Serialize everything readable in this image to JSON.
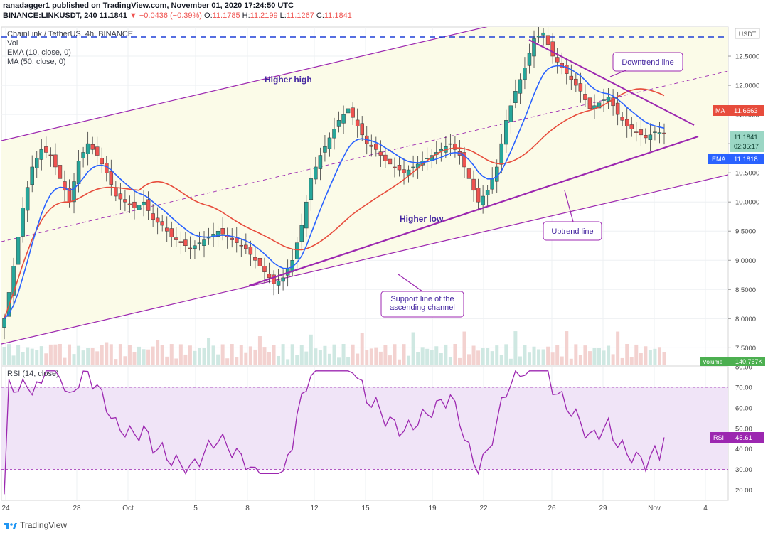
{
  "header": {
    "publisher_line": "ranadagger1 published on TradingView.com, November 01, 2020 17:24:50 UTC",
    "symbol": "BINANCE:LINKUSDT, 240",
    "last": "11.1841",
    "change_arrow": "▼",
    "change": "−0.0436 (−0.39%)",
    "o_label": "O:",
    "o_value": "11.1785",
    "h_label": "H:",
    "h_value": "11.2199",
    "l_label": "L:",
    "l_value": "11.1267",
    "c_label": "C:",
    "c_value": "11.1841"
  },
  "overlay": {
    "title": "ChainLink / TetherUS, 4h, BINANCE",
    "vol": "Vol",
    "ema": "EMA (10, close, 0)",
    "ma": "MA (50, close, 0)",
    "rsi": "RSI (14, close)"
  },
  "annotations": {
    "higher_high": "Higher high",
    "higher_low": "Higher low",
    "downtrend": "Downtrend line",
    "uptrend": "Uptrend line",
    "support": "Support line of the ascending channel"
  },
  "price_scale": {
    "currency": "USDT",
    "ticks": [
      "12.5000",
      "12.0000",
      "11.5000",
      "11.0000",
      "10.5000",
      "10.0000",
      "9.5000",
      "9.0000",
      "8.5000",
      "8.0000",
      "7.5000"
    ]
  },
  "rsi_scale": {
    "ticks": [
      "80.00",
      "70.00",
      "60.00",
      "50.00",
      "40.00",
      "30.00",
      "20.00"
    ]
  },
  "labels": {
    "ma_tag": "MA",
    "ma_value": "11.6663",
    "last_value": "11.1841",
    "countdown": "02:35:17",
    "ema_tag": "EMA",
    "ema_value": "11.1818",
    "volume_tag": "Volume",
    "volume_value": "140.767K",
    "rsi_tag": "RSI",
    "rsi_value": "45.61"
  },
  "time_axis": {
    "ticks": [
      "24",
      "28",
      "Oct",
      "5",
      "8",
      "12",
      "15",
      "19",
      "22",
      "26",
      "29",
      "Nov",
      "4"
    ]
  },
  "brand": "TradingView",
  "colors": {
    "up": "#26a69a",
    "down": "#ef5350",
    "ema": "#2962ff",
    "ma": "#e74c3c",
    "rsi": "#9c27b0",
    "channel": "#9c27b0",
    "channel_fill": "#fbfbe8",
    "rsi_band": "#f0e4f7",
    "annotation_text": "#4527a0",
    "volume_tag": "#4caf50"
  },
  "chart_data": {
    "type": "candlestick",
    "pair": "LINKUSDT",
    "interval": "4h",
    "date_range": [
      "2020-09-23",
      "2020-11-01"
    ],
    "price_ylim": [
      7.2,
      13.0
    ],
    "rsi_ylim": [
      15,
      80
    ],
    "rsi_band": [
      30,
      70
    ],
    "close_series": [
      [
        0,
        8.0
      ],
      [
        1,
        8.9
      ],
      [
        2,
        9.9
      ],
      [
        3,
        10.6
      ],
      [
        4,
        10.9
      ],
      [
        5,
        10.8
      ],
      [
        6,
        10.4
      ],
      [
        7,
        10.0
      ],
      [
        8,
        10.7
      ],
      [
        9,
        11.0
      ],
      [
        10,
        10.8
      ],
      [
        11,
        10.5
      ],
      [
        12,
        10.1
      ],
      [
        13,
        10.0
      ],
      [
        14,
        9.9
      ],
      [
        15,
        10.0
      ],
      [
        16,
        9.7
      ],
      [
        17,
        9.6
      ],
      [
        18,
        9.4
      ],
      [
        19,
        9.3
      ],
      [
        20,
        9.2
      ],
      [
        21,
        9.3
      ],
      [
        22,
        9.4
      ],
      [
        23,
        9.5
      ],
      [
        24,
        9.4
      ],
      [
        25,
        9.3
      ],
      [
        26,
        9.2
      ],
      [
        27,
        9.0
      ],
      [
        28,
        8.8
      ],
      [
        29,
        8.6
      ],
      [
        30,
        8.7
      ],
      [
        31,
        9.0
      ],
      [
        32,
        9.6
      ],
      [
        33,
        10.4
      ],
      [
        34,
        10.8
      ],
      [
        35,
        11.1
      ],
      [
        36,
        11.4
      ],
      [
        37,
        11.6
      ],
      [
        38,
        11.3
      ],
      [
        39,
        11.0
      ],
      [
        40,
        10.9
      ],
      [
        41,
        10.7
      ],
      [
        42,
        10.6
      ],
      [
        43,
        10.5
      ],
      [
        44,
        10.6
      ],
      [
        45,
        10.7
      ],
      [
        46,
        10.8
      ],
      [
        47,
        10.9
      ],
      [
        48,
        11.0
      ],
      [
        49,
        10.8
      ],
      [
        50,
        10.4
      ],
      [
        51,
        10.0
      ],
      [
        52,
        10.2
      ],
      [
        53,
        10.6
      ],
      [
        54,
        11.4
      ],
      [
        55,
        11.9
      ],
      [
        56,
        12.3
      ],
      [
        57,
        12.8
      ],
      [
        58,
        12.9
      ],
      [
        59,
        12.5
      ],
      [
        60,
        12.3
      ],
      [
        61,
        12.1
      ],
      [
        62,
        11.9
      ],
      [
        63,
        11.6
      ],
      [
        64,
        11.7
      ],
      [
        65,
        11.8
      ],
      [
        66,
        11.5
      ],
      [
        67,
        11.3
      ],
      [
        68,
        11.2
      ],
      [
        69,
        11.1
      ],
      [
        70,
        11.2
      ],
      [
        71,
        11.18
      ]
    ],
    "rsi_close": 45.61,
    "last_close": 11.1841,
    "ema10_last": 11.1818,
    "ma50_last": 11.6663,
    "volume_last": "140.767K"
  }
}
